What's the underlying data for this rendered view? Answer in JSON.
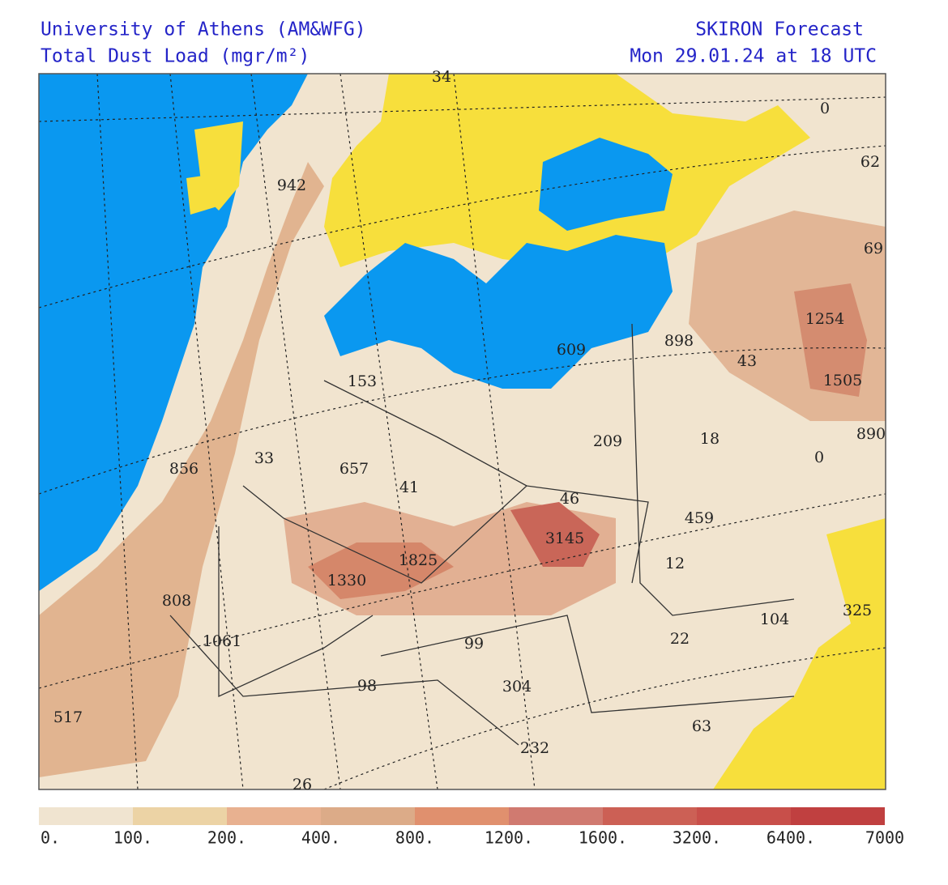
{
  "header": {
    "institution": "University of Athens (AM&WFG)",
    "quantity": "Total Dust Load (mgr/m²)",
    "model": "SKIRON Forecast",
    "valid_time": "Mon 29.01.24 at 18 UTC"
  },
  "map": {
    "values": [
      942,
      153,
      856,
      33,
      657,
      41,
      1825,
      1330,
      808,
      1061,
      517,
      99,
      98,
      304,
      232,
      46,
      3145,
      209,
      18,
      459,
      12,
      104,
      22,
      63,
      325,
      609,
      898,
      43,
      1254,
      1505,
      890,
      0,
      62,
      69,
      0,
      26,
      34
    ]
  },
  "colorbar": {
    "levels": [
      {
        "value": 0,
        "label": "0."
      },
      {
        "value": 100,
        "label": "100."
      },
      {
        "value": 200,
        "label": "200."
      },
      {
        "value": 400,
        "label": "400."
      },
      {
        "value": 800,
        "label": "800."
      },
      {
        "value": 1200,
        "label": "1200."
      },
      {
        "value": 1600,
        "label": "1600."
      },
      {
        "value": 3200,
        "label": "3200."
      },
      {
        "value": 6400,
        "label": "6400."
      },
      {
        "value": 7000,
        "label": "7000"
      }
    ],
    "colors": [
      "#f0e4d0",
      "#ecd3a5",
      "#e8b190",
      "#dcab88",
      "#e0906e",
      "#d07a70",
      "#cc6055",
      "#c84f4a",
      "#c04040"
    ]
  }
}
